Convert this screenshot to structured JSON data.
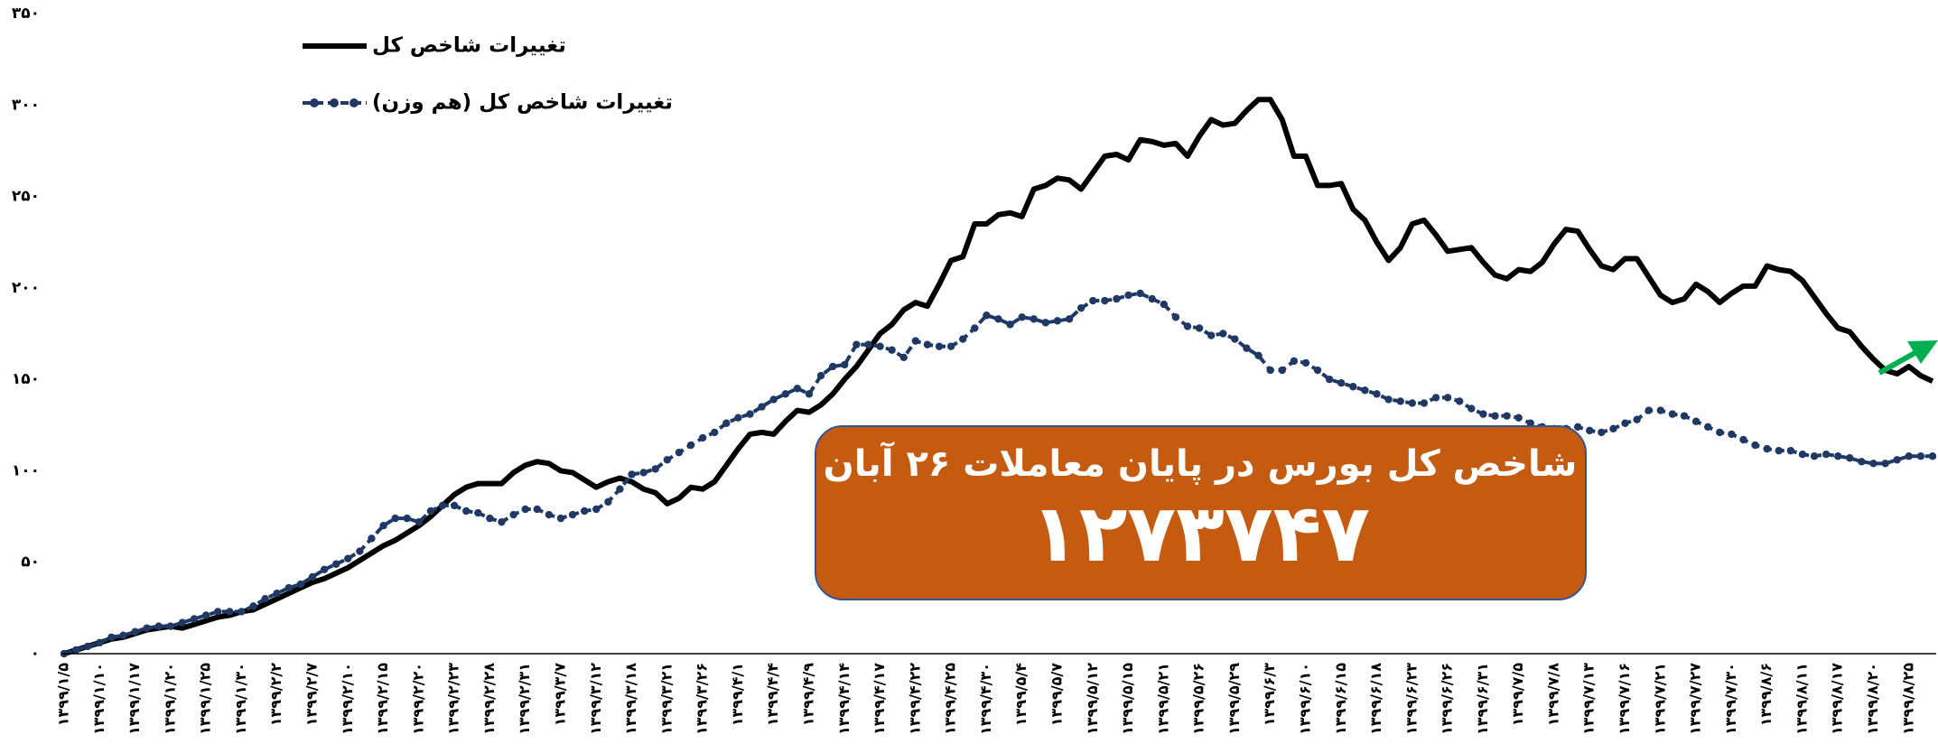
{
  "chart_data": {
    "type": "line",
    "categories": [
      "۱۳۹۹/۱/۵",
      null,
      null,
      "۱۳۹۹/۱/۱۰",
      null,
      null,
      "۱۳۹۹/۱/۱۷",
      null,
      null,
      "۱۳۹۹/۱/۲۰",
      null,
      null,
      "۱۳۹۹/۱/۲۵",
      null,
      null,
      "۱۳۹۹/۱/۳۰",
      null,
      null,
      "۱۳۹۹/۲/۲",
      null,
      null,
      "۱۳۹۹/۲/۷",
      null,
      null,
      "۱۳۹۹/۲/۱۰",
      null,
      null,
      "۱۳۹۹/۲/۱۵",
      null,
      null,
      "۱۳۹۹/۲/۲۰",
      null,
      null,
      "۱۳۹۹/۲/۲۳",
      null,
      null,
      "۱۳۹۹/۲/۲۸",
      null,
      null,
      "۱۳۹۹/۲/۳۱",
      null,
      null,
      "۱۳۹۹/۳/۷",
      null,
      null,
      "۱۳۹۹/۳/۱۲",
      null,
      null,
      "۱۳۹۹/۳/۱۸",
      null,
      null,
      "۱۳۹۹/۳/۲۱",
      null,
      null,
      "۱۳۹۹/۳/۲۶",
      null,
      null,
      "۱۳۹۹/۴/۱",
      null,
      null,
      "۱۳۹۹/۴/۴",
      null,
      null,
      "۱۳۹۹/۴/۹",
      null,
      null,
      "۱۳۹۹/۴/۱۴",
      null,
      null,
      "۱۳۹۹/۴/۱۷",
      null,
      null,
      "۱۳۹۹/۴/۲۲",
      null,
      null,
      "۱۳۹۹/۴/۲۵",
      null,
      null,
      "۱۳۹۹/۴/۳۰",
      null,
      null,
      "۱۳۹۹/۵/۴",
      null,
      null,
      "۱۳۹۹/۵/۷",
      null,
      null,
      "۱۳۹۹/۵/۱۲",
      null,
      null,
      "۱۳۹۹/۵/۱۵",
      null,
      null,
      "۱۳۹۹/۵/۲۱",
      null,
      null,
      "۱۳۹۹/۵/۲۶",
      null,
      null,
      "۱۳۹۹/۵/۲۹",
      null,
      null,
      "۱۳۹۹/۶/۳",
      null,
      null,
      "۱۳۹۹/۶/۱۰",
      null,
      null,
      "۱۳۹۹/۶/۱۵",
      null,
      null,
      "۱۳۹۹/۶/۱۸",
      null,
      null,
      "۱۳۹۹/۶/۲۳",
      null,
      null,
      "۱۳۹۹/۶/۲۶",
      null,
      null,
      "۱۳۹۹/۶/۳۱",
      null,
      null,
      "۱۳۹۹/۷/۵",
      null,
      null,
      "۱۳۹۹/۷/۸",
      null,
      null,
      "۱۳۹۹/۷/۱۳",
      null,
      null,
      "۱۳۹۹/۷/۱۶",
      null,
      null,
      "۱۳۹۹/۷/۲۱",
      null,
      null,
      "۱۳۹۹/۷/۲۷",
      null,
      null,
      "۱۳۹۹/۷/۳۰",
      null,
      null,
      "۱۳۹۹/۸/۶",
      null,
      null,
      "۱۳۹۹/۸/۱۱",
      null,
      null,
      "۱۳۹۹/۸/۱۷",
      null,
      null,
      "۱۳۹۹/۸/۲۰",
      null,
      null,
      "۱۳۹۹/۸/۲۵",
      null,
      null
    ],
    "series": [
      {
        "name": "تغییرات شاخص کل",
        "color": "#000000",
        "line_style": "solid",
        "markers": false,
        "values": [
          0,
          2,
          4,
          6,
          8,
          9,
          11,
          13,
          14,
          15,
          14,
          16,
          18,
          20,
          21,
          23,
          24,
          27,
          30,
          33,
          36,
          39,
          41,
          44,
          47,
          51,
          55,
          59,
          62,
          66,
          70,
          75,
          81,
          87,
          91,
          93,
          93,
          93,
          99,
          103,
          105,
          104,
          100,
          99,
          95,
          91,
          94,
          96,
          94,
          90,
          88,
          82,
          85,
          91,
          90,
          94,
          103,
          112,
          120,
          121,
          120,
          127,
          133,
          132,
          136,
          142,
          150,
          157,
          166,
          175,
          180,
          188,
          192,
          190,
          202,
          215,
          217,
          235,
          235,
          240,
          241,
          239,
          254,
          256,
          260,
          259,
          254,
          263,
          272,
          273,
          270,
          281,
          280,
          278,
          279,
          272,
          283,
          292,
          289,
          290,
          297,
          303,
          303,
          292,
          272,
          272,
          256,
          256,
          257,
          243,
          237,
          225,
          215,
          222,
          235,
          237,
          229,
          220,
          221,
          222,
          214,
          207,
          205,
          210,
          209,
          214,
          224,
          232,
          231,
          221,
          212,
          210,
          216,
          216,
          206,
          196,
          192,
          194,
          202,
          198,
          192,
          197,
          201,
          201,
          212,
          210,
          209,
          204,
          195,
          186,
          178,
          176,
          168,
          161,
          155,
          153,
          157,
          152,
          149
        ]
      },
      {
        "name": "تغییرات شاخص کل (هم وزن)",
        "color": "#1f3864",
        "line_style": "dashed",
        "markers": true,
        "values": [
          0,
          2,
          4,
          6,
          9,
          10,
          12,
          14,
          15,
          15,
          17,
          19,
          21,
          23,
          23,
          23,
          26,
          30,
          33,
          36,
          38,
          42,
          46,
          49,
          52,
          56,
          63,
          70,
          74,
          74,
          72,
          78,
          81,
          81,
          78,
          77,
          74,
          72,
          76,
          79,
          79,
          76,
          74,
          76,
          78,
          79,
          83,
          90,
          98,
          99,
          101,
          106,
          110,
          114,
          118,
          121,
          126,
          129,
          131,
          135,
          139,
          142,
          145,
          142,
          152,
          157,
          158,
          169,
          169,
          168,
          166,
          162,
          171,
          169,
          168,
          168,
          172,
          178,
          185,
          183,
          180,
          184,
          183,
          181,
          182,
          183,
          189,
          193,
          193,
          194,
          196,
          197,
          194,
          191,
          184,
          179,
          178,
          174,
          175,
          172,
          167,
          163,
          155,
          155,
          160,
          159,
          155,
          150,
          148,
          146,
          144,
          142,
          139,
          138,
          137,
          137,
          140,
          140,
          138,
          134,
          131,
          130,
          130,
          129,
          126,
          124,
          123,
          123,
          124,
          122,
          121,
          123,
          126,
          128,
          133,
          133,
          131,
          130,
          127,
          124,
          121,
          120,
          117,
          114,
          112,
          111,
          111,
          109,
          108,
          109,
          108,
          107,
          105,
          104,
          104,
          106,
          108,
          108,
          108
        ]
      }
    ],
    "ylim": [
      0,
      350
    ],
    "yticks": [
      {
        "value": 0,
        "label": "۰"
      },
      {
        "value": 50,
        "label": "۵۰"
      },
      {
        "value": 100,
        "label": "۱۰۰"
      },
      {
        "value": 150,
        "label": "۱۵۰"
      },
      {
        "value": 200,
        "label": "۲۰۰"
      },
      {
        "value": 250,
        "label": "۲۵۰"
      },
      {
        "value": 300,
        "label": "۳۰۰"
      },
      {
        "value": 350,
        "label": "۳۵۰"
      }
    ],
    "grid": false,
    "legend": "upper left",
    "annotation": {
      "title": "شاخص کل بورس در پایان معاملات ۲۶ آبان",
      "value": "۱۲۷۳۷۴۷"
    }
  }
}
